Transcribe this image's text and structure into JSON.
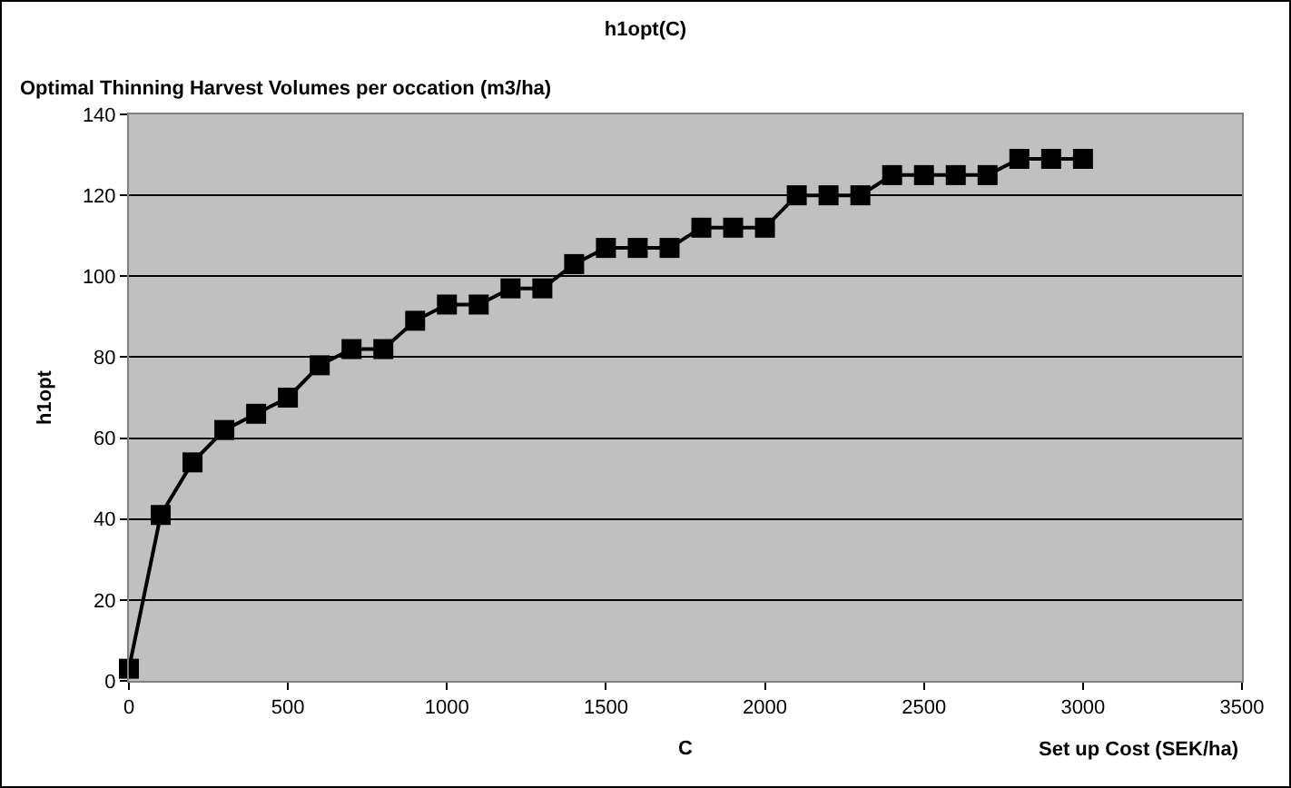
{
  "chart_data": {
    "type": "line",
    "title": "h1opt(C)",
    "xlabel": "C",
    "ylabel": "h1opt",
    "annotations": [
      "Optimal Thinning Harvest Volumes per occation (m3/ha)",
      "Set up Cost (SEK/ha)"
    ],
    "x": [
      0,
      100,
      200,
      300,
      400,
      500,
      600,
      700,
      800,
      900,
      1000,
      1100,
      1200,
      1300,
      1400,
      1500,
      1600,
      1700,
      1800,
      1900,
      2000,
      2100,
      2200,
      2300,
      2400,
      2500,
      2600,
      2700,
      2800,
      2900,
      3000
    ],
    "series": [
      {
        "color": "#000000",
        "values": [
          3,
          41,
          54,
          62,
          66,
          70,
          78,
          82,
          82,
          89,
          93,
          93,
          97,
          97,
          103,
          107,
          107,
          107,
          112,
          112,
          112,
          120,
          120,
          120,
          125,
          125,
          125,
          125,
          129,
          129,
          129
        ]
      }
    ],
    "xlim": [
      0,
      3500
    ],
    "xticks": [
      0,
      500,
      1000,
      1500,
      2000,
      2500,
      3000,
      3500
    ],
    "ylim": [
      0,
      140
    ],
    "yticks": [
      0,
      20,
      40,
      60,
      80,
      100,
      120,
      140
    ],
    "grid": "y",
    "legend": false,
    "marker": "square",
    "line_style": "solid"
  }
}
